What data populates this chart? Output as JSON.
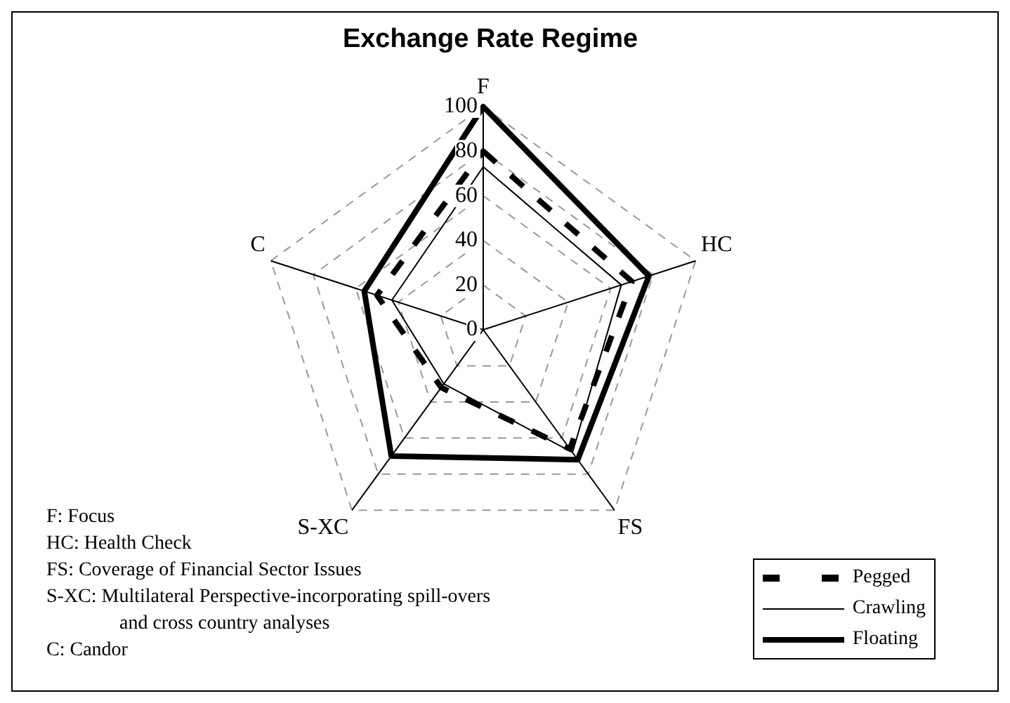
{
  "chart_data": {
    "type": "radar",
    "title": "Exchange Rate Regime",
    "categories": [
      "F",
      "HC",
      "FS",
      "S-XC",
      "C"
    ],
    "series": [
      {
        "name": "Pegged",
        "color": "#000000",
        "line_style": "dashed",
        "values": [
          80,
          70,
          66,
          32,
          50
        ]
      },
      {
        "name": "Crawling",
        "color": "#000000",
        "line_style": "solid",
        "values": [
          73,
          65,
          68,
          30,
          43
        ]
      },
      {
        "name": "Floating",
        "color": "#000000",
        "line_style": "solid",
        "values": [
          100,
          78,
          72,
          70,
          56
        ]
      }
    ],
    "ylim": [
      0,
      100
    ],
    "yticks": [
      0,
      20,
      40,
      60,
      80,
      100
    ],
    "grid": true,
    "legend": "bottom right",
    "marker": "none",
    "annotations": [
      "F: Focus",
      "HC: Health Check",
      "FS: Coverage of Financial Sector Issues",
      "S-XC: Multilateral Perspective-incorporating spill-overs and cross country analyses",
      "C: Candor"
    ]
  }
}
